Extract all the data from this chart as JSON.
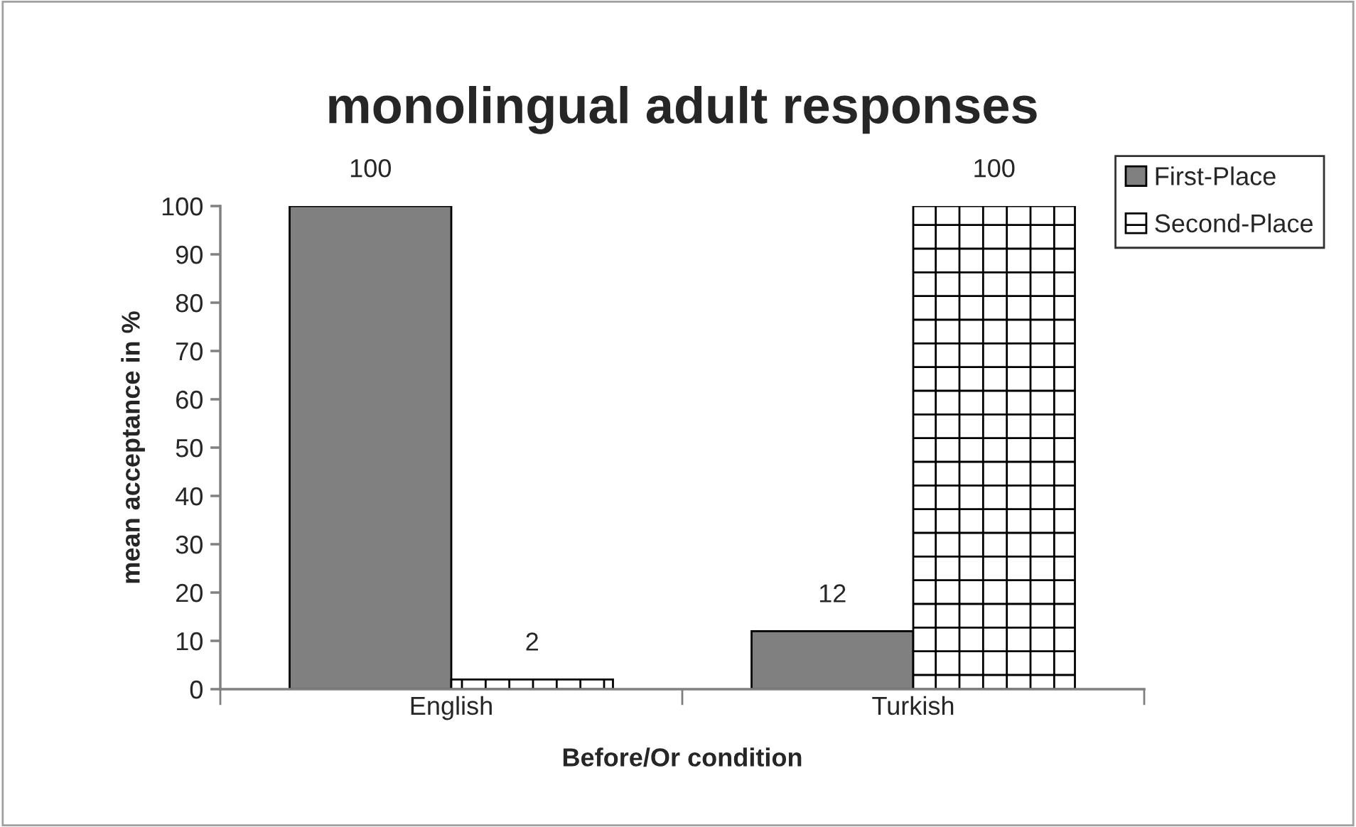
{
  "chart_data": {
    "type": "bar",
    "title": "monolingual adult responses",
    "xlabel": "Before/Or condition",
    "ylabel": "mean acceptance in %",
    "categories": [
      "English",
      "Turkish"
    ],
    "series": [
      {
        "name": "First-Place",
        "color": "#808080",
        "values": [
          100,
          12
        ]
      },
      {
        "name": "Second-Place",
        "color": "#ffffff",
        "values": [
          2,
          100
        ]
      }
    ],
    "ylim": [
      0,
      100
    ],
    "yticks": [
      0,
      10,
      20,
      30,
      40,
      50,
      60,
      70,
      80,
      90,
      100
    ],
    "data_labels": true,
    "legend": "right",
    "grid": false
  }
}
